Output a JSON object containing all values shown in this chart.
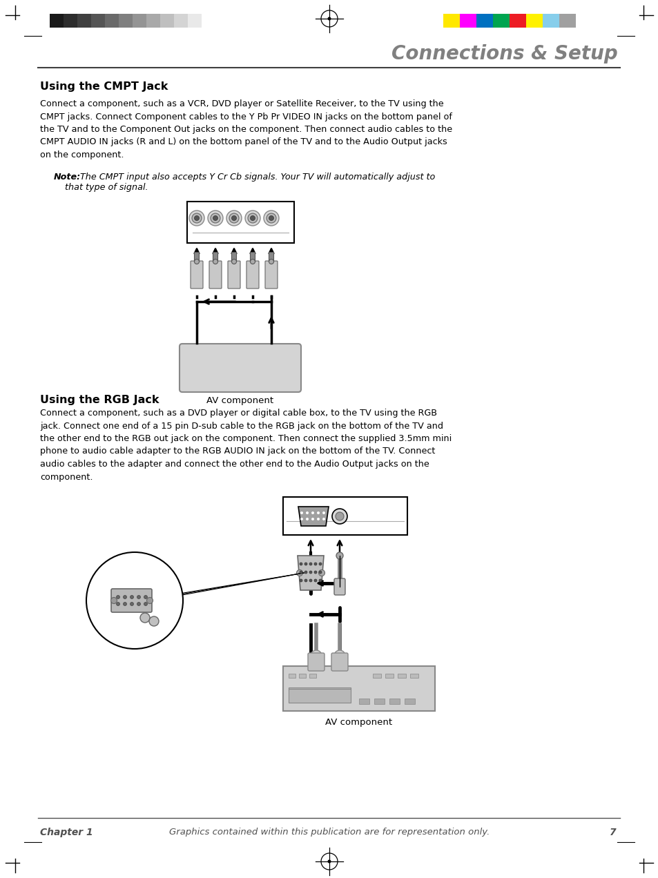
{
  "title": "Connections & Setup",
  "title_color": "#808080",
  "section1_heading": "Using the CMPT Jack",
  "section1_body": "Connect a component, such as a VCR, DVD player or Satellite Receiver, to the TV using the\nCMPT jacks. Connect Component cables to the Y Pb Pr VIDEO IN jacks on the bottom panel of\nthe TV and to the Component Out jacks on the component. Then connect audio cables to the\nCMPT AUDIO IN jacks (R and L) on the bottom panel of the TV and to the Audio Output jacks\non the component.",
  "section1_note_bold": "Note:",
  "section1_note_italic": " The CMPT input also accepts Y Cr Cb signals. Your TV will automatically adjust to\nthat type of signal.",
  "section2_heading": "Using the RGB Jack",
  "section2_body": "Connect a component, such as a DVD player or digital cable box, to the TV using the RGB\njack. Connect one end of a 15 pin D-sub cable to the RGB jack on the bottom of the TV and\nthe other end to the RGB out jack on the component. Then connect the supplied 3.5mm mini\nphone to audio cable adapter to the RGB AUDIO IN jack on the bottom of the TV. Connect\naudio cables to the adapter and connect the other end to the Audio Output jacks on the\ncomponent.",
  "footer_chapter": "Chapter 1",
  "footer_note": "Graphics contained within this publication are for representation only.",
  "footer_page": "7",
  "av_component_label": "AV component",
  "background_color": "#ffffff",
  "text_color": "#000000",
  "gray_color": "#808080",
  "colors_left": [
    "#1a1a1a",
    "#2d2d2d",
    "#404040",
    "#555555",
    "#6a6a6a",
    "#7f7f7f",
    "#949494",
    "#a9a9a9",
    "#bfbfbf",
    "#d4d4d4",
    "#e9e9e9",
    "#ffffff"
  ],
  "colors_right": [
    "#FFE800",
    "#FF00FF",
    "#0070C0",
    "#00A550",
    "#ED1C24",
    "#FFF100",
    "#87CEEB",
    "#A0A0A0"
  ]
}
